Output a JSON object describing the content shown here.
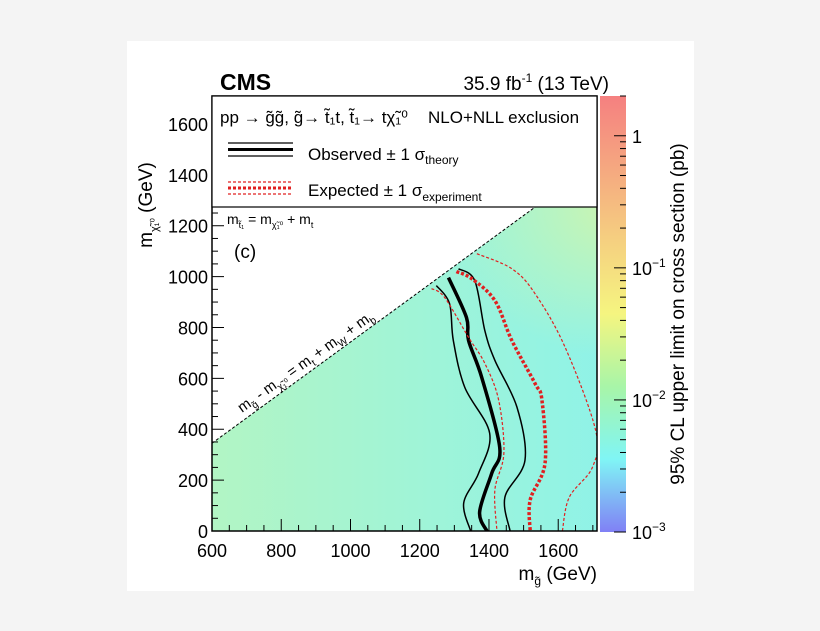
{
  "chart_data": {
    "type": "heatmap",
    "experiment_label": "CMS",
    "lumi_label": "35.9 fb",
    "lumi_exp": "-1",
    "energy_label": "(13 TeV)",
    "panel_label": "(c)",
    "xlabel": {
      "main": "m",
      "sub": "g̃",
      "unit": "(GeV)"
    },
    "ylabel": {
      "main": "m",
      "sub": "χ̃₁⁰",
      "unit": "(GeV)"
    },
    "zlabel": "95% CL upper limit on cross section (pb)",
    "xlim": [
      600,
      1712
    ],
    "ylim": [
      0,
      1710
    ],
    "zlim": [
      0.001,
      2
    ],
    "zscale": "log",
    "xticks": [
      600,
      800,
      1000,
      1200,
      1400,
      1600
    ],
    "yticks": [
      0,
      200,
      400,
      600,
      800,
      1000,
      1200,
      1400,
      1600
    ],
    "zticks": [
      {
        "value": 1,
        "label": "1",
        "exp": ""
      },
      {
        "value": 0.1,
        "label": "10",
        "exp": "−1"
      },
      {
        "value": 0.01,
        "label": "10",
        "exp": "−2"
      },
      {
        "value": 0.001,
        "label": "10",
        "exp": "−3"
      }
    ],
    "colormap": [
      "#f58080",
      "#f5a880",
      "#f5d080",
      "#f5f580",
      "#a8f5a8",
      "#80f5f5",
      "#8080f5"
    ],
    "heatmap_colors": {
      "left": "#b2f5c4",
      "right": "#88f2ef",
      "top_right": "#d4f5a8"
    },
    "legend": {
      "header": "pp → g̃g̃, g̃→ t̃₁t, t̃₁→ tχ̃₁⁰",
      "header_right": "NLO+NLL exclusion",
      "observed": {
        "label": "Observed ± 1 σ",
        "sub": "theory",
        "color": "#000000"
      },
      "expected": {
        "label": "Expected ± 1 σ",
        "sub": "experiment",
        "color": "#e02020"
      }
    },
    "annotations": {
      "upper_line": {
        "main": "m",
        "s1": "t̃₁",
        "eq": " = m",
        "s2": "χ̃₁⁰",
        "tail": " + m",
        "s3": "t"
      },
      "diagonal": {
        "main": "m",
        "s1": "g̃",
        "mid": " - m",
        "s2": "χ̃₁⁰",
        "eq": " = m",
        "s3": "t",
        "p1": " + m",
        "s4": "W",
        "p2": " + m",
        "s5": "b"
      }
    },
    "kinematic_boundary": [
      [
        600,
        345
      ],
      [
        1530,
        1270
      ]
    ],
    "series": [
      {
        "name": "Observed",
        "style": "observed-central",
        "points": [
          [
            1283,
            996
          ],
          [
            1335,
            839
          ],
          [
            1341,
            749
          ],
          [
            1379,
            604
          ],
          [
            1431,
            329
          ],
          [
            1408,
            227
          ],
          [
            1373,
            75
          ],
          [
            1394,
            0
          ]
        ]
      },
      {
        "name": "Observed -1 sigma theory",
        "style": "observed-band",
        "points": [
          [
            1248,
            965
          ],
          [
            1286,
            894
          ],
          [
            1297,
            749
          ],
          [
            1330,
            565
          ],
          [
            1402,
            384
          ],
          [
            1370,
            227
          ],
          [
            1327,
            110
          ],
          [
            1347,
            0
          ]
        ]
      },
      {
        "name": "Observed +1 sigma theory",
        "style": "observed-band",
        "points": [
          [
            1312,
            1031
          ],
          [
            1359,
            984
          ],
          [
            1388,
            788
          ],
          [
            1417,
            671
          ],
          [
            1481,
            486
          ],
          [
            1504,
            278
          ],
          [
            1446,
            133
          ],
          [
            1461,
            0
          ]
        ]
      },
      {
        "name": "Expected",
        "style": "expected-central",
        "points": [
          [
            1306,
            1020
          ],
          [
            1350,
            992
          ],
          [
            1417,
            906
          ],
          [
            1466,
            749
          ],
          [
            1533,
            580
          ],
          [
            1553,
            514
          ],
          [
            1562,
            267
          ],
          [
            1519,
            122
          ],
          [
            1519,
            0
          ]
        ]
      },
      {
        "name": "Expected -1 sigma experiment",
        "style": "expected-band",
        "points": [
          [
            1234,
            953
          ],
          [
            1272,
            918
          ],
          [
            1341,
            761
          ],
          [
            1388,
            659
          ],
          [
            1428,
            514
          ],
          [
            1443,
            306
          ],
          [
            1417,
            161
          ],
          [
            1423,
            0
          ]
        ]
      },
      {
        "name": "Expected +1 sigma experiment",
        "style": "expected-band",
        "points": [
          [
            1365,
            1090
          ],
          [
            1466,
            1031
          ],
          [
            1533,
            933
          ],
          [
            1620,
            722
          ],
          [
            1708,
            396
          ],
          [
            1699,
            251
          ],
          [
            1632,
            133
          ],
          [
            1612,
            0
          ]
        ]
      }
    ]
  }
}
